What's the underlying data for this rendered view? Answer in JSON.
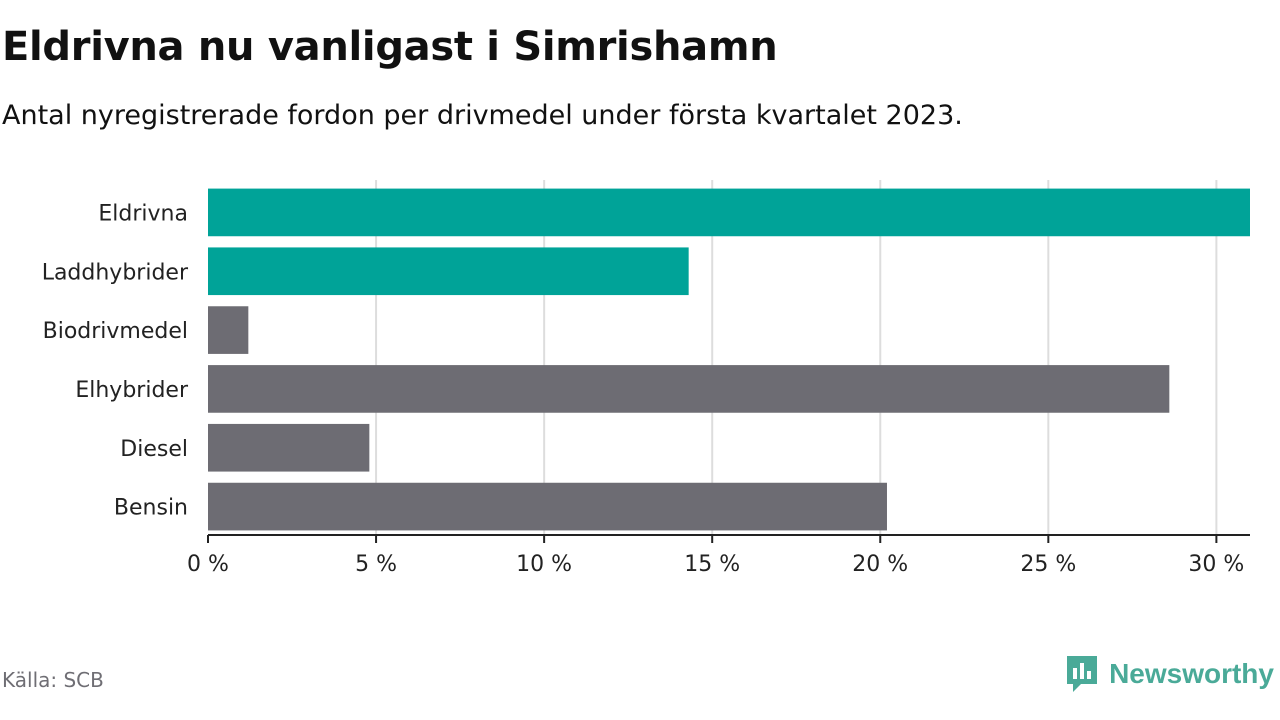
{
  "header": {
    "title": "Eldrivna nu vanligast i Simrishamn",
    "subtitle": "Antal nyregistrerade fordon per drivmedel under första kvartalet 2023."
  },
  "footer": {
    "source": "Källa: SCB",
    "brand": "Newsworthy",
    "brand_icon": "newsworthy-logo-icon"
  },
  "colors": {
    "highlight": "#00a398",
    "other": "#6d6c73",
    "grid": "#dddddd",
    "axis": "#222222",
    "brand": "#4aaa98"
  },
  "chart_data": {
    "type": "bar",
    "orientation": "horizontal",
    "categories": [
      "Eldrivna",
      "Laddhybrider",
      "Biodrivmedel",
      "Elhybrider",
      "Diesel",
      "Bensin"
    ],
    "values": [
      31.0,
      14.3,
      1.2,
      28.6,
      4.8,
      20.2
    ],
    "highlighted": [
      true,
      true,
      false,
      false,
      false,
      false
    ],
    "x_ticks": [
      0,
      5,
      10,
      15,
      20,
      25,
      30
    ],
    "x_tick_labels": [
      "0 %",
      "5 %",
      "10 %",
      "15 %",
      "20 %",
      "25 %",
      "30 %"
    ],
    "xlim": [
      0,
      31
    ],
    "grid": true,
    "legend": "none"
  }
}
